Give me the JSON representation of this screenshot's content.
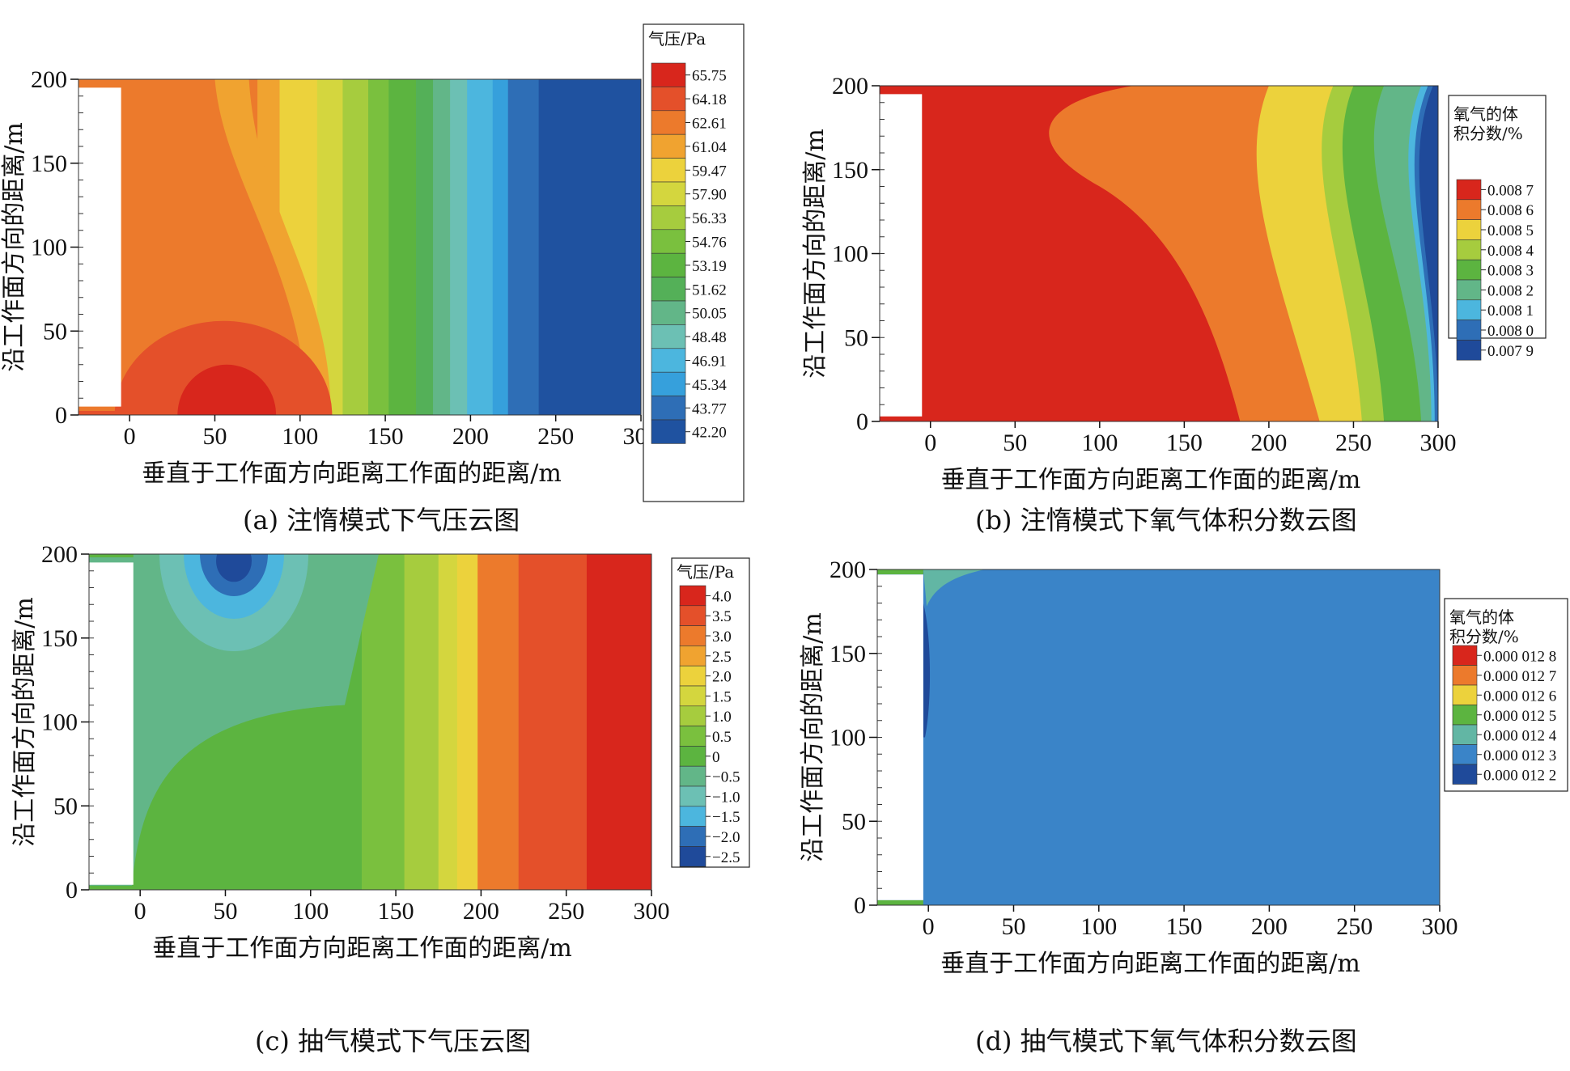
{
  "chart_data": [
    {
      "id": "a",
      "type": "heatmap",
      "caption": "(a) 注惰模式下气压云图",
      "xlabel": "垂直于工作面方向距离工作面的距离/m",
      "ylabel": "沿工作面方向的距离/m",
      "xlim": [
        -30,
        300
      ],
      "ylim": [
        0,
        200
      ],
      "xticks": [
        "0",
        "50",
        "100",
        "150",
        "200",
        "250",
        "300"
      ],
      "yticks": [
        "0",
        "50",
        "100",
        "150",
        "200"
      ],
      "legend_title": [
        "气压/Pa"
      ],
      "legend_levels": [
        "65.75",
        "64.18",
        "62.61",
        "61.04",
        "59.47",
        "57.90",
        "56.33",
        "54.76",
        "53.19",
        "51.62",
        "50.05",
        "48.48",
        "46.91",
        "45.34",
        "43.77",
        "42.20"
      ],
      "legend_colors": [
        "#d8261c",
        "#e4502a",
        "#ec7a2c",
        "#f0a330",
        "#ecd23c",
        "#d4d63e",
        "#a6cc3e",
        "#7ac03e",
        "#5cb440",
        "#54b058",
        "#62b688",
        "#6cc0b4",
        "#4cb6de",
        "#36a0dc",
        "#2e6eb6",
        "#1f52a0"
      ],
      "obstacle": {
        "x0": -30,
        "x1": -5,
        "y0": 5,
        "y1": 195
      }
    },
    {
      "id": "b",
      "type": "heatmap",
      "caption": "(b) 注惰模式下氧气体积分数云图",
      "xlabel": "垂直于工作面方向距离工作面的距离/m",
      "ylabel": "沿工作面方向的距离/m",
      "xlim": [
        -30,
        300
      ],
      "ylim": [
        0,
        200
      ],
      "xticks": [
        "0",
        "50",
        "100",
        "150",
        "200",
        "250",
        "300"
      ],
      "yticks": [
        "0",
        "50",
        "100",
        "150",
        "200"
      ],
      "legend_title": [
        "氧气的体",
        "积分数/%"
      ],
      "legend_levels": [
        "0.008 7",
        "0.008 6",
        "0.008 5",
        "0.008 4",
        "0.008 3",
        "0.008 2",
        "0.008 1",
        "0.008 0",
        "0.007 9"
      ],
      "legend_colors": [
        "#d8261c",
        "#ec7a2c",
        "#ecd23c",
        "#a6cc3e",
        "#5cb440",
        "#62b688",
        "#4cb6de",
        "#2e6eb6",
        "#1f4a9a"
      ],
      "obstacle": {
        "x0": -30,
        "x1": -5,
        "y0": 3,
        "y1": 195
      }
    },
    {
      "id": "c",
      "type": "heatmap",
      "caption": "(c) 抽气模式下气压云图",
      "xlabel": "垂直于工作面方向距离工作面的距离/m",
      "ylabel": "沿工作面方向的距离/m",
      "xlim": [
        -30,
        300
      ],
      "ylim": [
        0,
        200
      ],
      "xticks": [
        "0",
        "50",
        "100",
        "150",
        "200",
        "250",
        "300"
      ],
      "yticks": [
        "0",
        "50",
        "100",
        "150",
        "200"
      ],
      "legend_title": [
        "气压/Pa"
      ],
      "legend_levels": [
        "4.0",
        "3.5",
        "3.0",
        "2.5",
        "2.0",
        "1.5",
        "1.0",
        "0.5",
        "0",
        "−0.5",
        "−1.0",
        "−1.5",
        "−2.0",
        "−2.5"
      ],
      "legend_colors": [
        "#d8261c",
        "#e4502a",
        "#ec7a2c",
        "#f0a330",
        "#ecd23c",
        "#d4d63e",
        "#a6cc3e",
        "#7ac03e",
        "#5cb440",
        "#62b688",
        "#6cc0b4",
        "#4cb6de",
        "#2e6eb6",
        "#1f4a9a"
      ],
      "obstacle": {
        "x0": -30,
        "x1": -4,
        "y0": 3,
        "y1": 195
      }
    },
    {
      "id": "d",
      "type": "heatmap",
      "caption": "(d) 抽气模式下氧气体积分数云图",
      "xlabel": "垂直于工作面方向距离工作面的距离/m",
      "ylabel": "沿工作面方向的距离/m",
      "xlim": [
        -30,
        300
      ],
      "ylim": [
        0,
        200
      ],
      "xticks": [
        "0",
        "50",
        "100",
        "150",
        "200",
        "250",
        "300"
      ],
      "yticks": [
        "0",
        "50",
        "100",
        "150",
        "200"
      ],
      "legend_title": [
        "氧气的体",
        "积分数/%"
      ],
      "legend_levels": [
        "0.000 012 8",
        "0.000 012 7",
        "0.000 012 6",
        "0.000 012 5",
        "0.000 012 4",
        "0.000 012 3",
        "0.000 012 2"
      ],
      "legend_colors": [
        "#d8261c",
        "#ec7a2c",
        "#ecd23c",
        "#5cb440",
        "#62b6a4",
        "#3a84c8",
        "#1f4a9a"
      ],
      "obstacle": {
        "x0": -30,
        "x1": -3,
        "y0": 3,
        "y1": 197
      }
    }
  ]
}
